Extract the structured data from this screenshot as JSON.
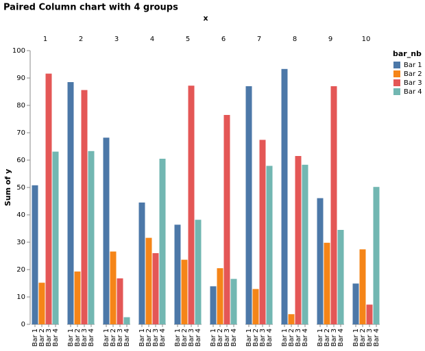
{
  "chart_data": {
    "type": "bar",
    "title": "Paired Column chart with 4 groups",
    "xlabel": "x",
    "ylabel": "Sum of y",
    "legend_title": "bar_nb",
    "categories": [
      "1",
      "2",
      "3",
      "4",
      "5",
      "6",
      "7",
      "8",
      "9",
      "10"
    ],
    "series": [
      {
        "name": "Bar 1",
        "color": "#4c78a8",
        "values": [
          50.8,
          88.5,
          68.2,
          44.5,
          36.4,
          13.9,
          87.0,
          93.3,
          46.1,
          14.9
        ]
      },
      {
        "name": "Bar 2",
        "color": "#f58518",
        "values": [
          15.2,
          19.3,
          26.6,
          31.6,
          23.6,
          20.5,
          12.9,
          3.7,
          29.8,
          27.4
        ]
      },
      {
        "name": "Bar 3",
        "color": "#e45756",
        "values": [
          91.6,
          85.6,
          16.8,
          26.0,
          87.2,
          76.5,
          67.4,
          61.5,
          87.0,
          7.2
        ]
      },
      {
        "name": "Bar 4",
        "color": "#72b7b2",
        "values": [
          63.1,
          63.3,
          2.6,
          60.5,
          38.2,
          16.6,
          57.9,
          58.3,
          34.5,
          50.2
        ]
      }
    ],
    "ylim": [
      0,
      100
    ],
    "yticks": [
      0,
      10,
      20,
      30,
      40,
      50,
      60,
      70,
      80,
      90,
      100
    ],
    "grid": false,
    "legend": "right"
  }
}
